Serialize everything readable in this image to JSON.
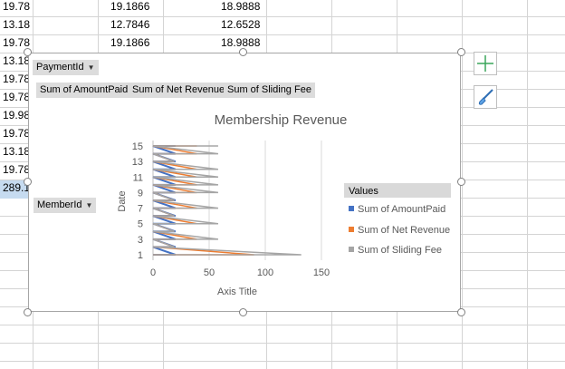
{
  "cells": {
    "rows": [
      {
        "a": "19.78",
        "b": "19.1866",
        "c": "18.9888"
      },
      {
        "a": "13.18",
        "b": "12.7846",
        "c": "12.6528"
      },
      {
        "a": "19.78",
        "b": "19.1866",
        "c": "18.9888"
      },
      {
        "a": "13.18"
      },
      {
        "a": "19.78"
      },
      {
        "a": "19.78"
      },
      {
        "a": "19.98"
      },
      {
        "a": "19.78"
      },
      {
        "a": "13.18"
      },
      {
        "a": "19.78"
      },
      {
        "a": "289.1"
      }
    ]
  },
  "pivot": {
    "filter_field": "PaymentId",
    "value_fields": [
      "Sum of AmountPaid",
      "Sum of Net Revenue",
      "Sum of Sliding Fee"
    ],
    "axis_field": "MemberId",
    "legend_header": "Values"
  },
  "colors": {
    "amount": "#4472c4",
    "net": "#ed7d31",
    "sliding": "#a5a5a5",
    "grid": "#d9d9d9"
  },
  "chart_data": {
    "type": "line",
    "title": "Membership Revenue",
    "xlabel": "Axis Title",
    "ylabel": "Date",
    "xlim": [
      0,
      150
    ],
    "x_ticks": [
      0,
      50,
      100,
      150
    ],
    "y_ticks": [
      1,
      3,
      5,
      7,
      9,
      11,
      13,
      15
    ],
    "grid": true,
    "legend_position": "right",
    "categories": [
      1,
      2,
      3,
      4,
      5,
      6,
      7,
      8,
      9,
      10,
      11,
      12,
      13,
      14,
      15
    ],
    "series": [
      {
        "name": "Sum of AmountPaid",
        "values": [
          20,
          20,
          20,
          20,
          20,
          20,
          20,
          20,
          20,
          20,
          20,
          20,
          20,
          20,
          20
        ]
      },
      {
        "name": "Sum of Net Revenue",
        "values": [
          90,
          19,
          39,
          19,
          39,
          19,
          39,
          19,
          39,
          39,
          39,
          39,
          19,
          39,
          39
        ]
      },
      {
        "name": "Sum of Sliding Fee",
        "values": [
          132,
          19,
          58,
          19,
          58,
          19,
          58,
          19,
          58,
          58,
          58,
          58,
          19,
          58,
          58
        ]
      }
    ]
  },
  "icons": {
    "add": "plus-icon",
    "style": "paintbrush-icon",
    "dropdown": "dropdown-arrow-icon"
  }
}
